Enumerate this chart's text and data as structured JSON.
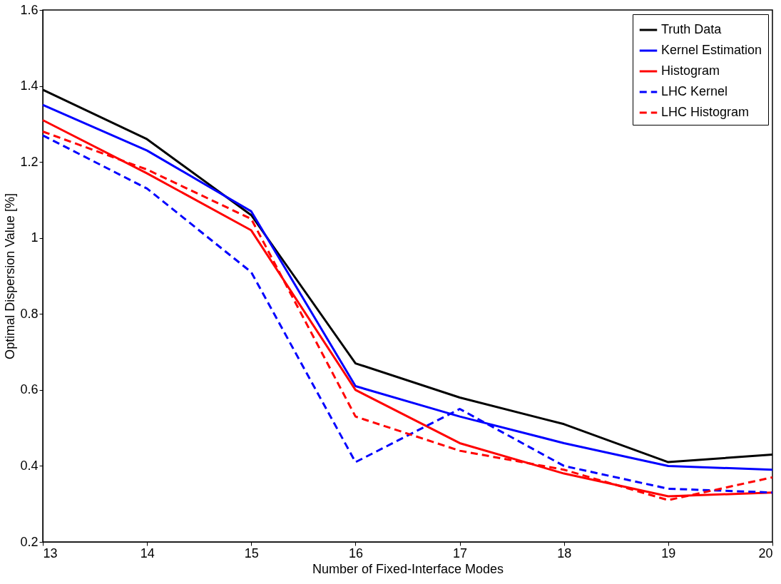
{
  "chart_data": {
    "type": "line",
    "xlabel": "Number of Fixed-Interface Modes",
    "ylabel": "Optimal Dispersion Value [%]",
    "x": [
      13,
      14,
      15,
      16,
      17,
      18,
      19,
      20
    ],
    "xlim": [
      13,
      20
    ],
    "xticks": [
      13,
      14,
      15,
      16,
      17,
      18,
      19,
      20
    ],
    "ylim": [
      0.2,
      1.6
    ],
    "yticks": [
      0.2,
      0.4,
      0.6,
      0.8,
      1,
      1.2,
      1.4,
      1.6
    ],
    "grid": false,
    "legend": "top right",
    "marker": "none",
    "series": [
      {
        "name": "Truth Data",
        "color": "#000000",
        "line_style": "solid",
        "values": [
          1.39,
          1.26,
          1.06,
          0.67,
          0.58,
          0.51,
          0.41,
          0.43
        ]
      },
      {
        "name": "Kernel Estimation",
        "color": "#0000ff",
        "line_style": "solid",
        "values": [
          1.35,
          1.23,
          1.07,
          0.61,
          0.53,
          0.46,
          0.4,
          0.39
        ]
      },
      {
        "name": "Histogram",
        "color": "#ff0000",
        "line_style": "solid",
        "values": [
          1.31,
          1.17,
          1.02,
          0.6,
          0.46,
          0.38,
          0.32,
          0.33
        ]
      },
      {
        "name": "LHC Kernel",
        "color": "#0000ff",
        "line_style": "dashed",
        "values": [
          1.27,
          1.13,
          0.91,
          0.41,
          0.55,
          0.4,
          0.34,
          0.33
        ]
      },
      {
        "name": "LHC Histogram",
        "color": "#ff0000",
        "line_style": "dashed",
        "values": [
          1.28,
          1.18,
          1.05,
          0.53,
          0.44,
          0.39,
          0.31,
          0.37
        ]
      }
    ]
  }
}
